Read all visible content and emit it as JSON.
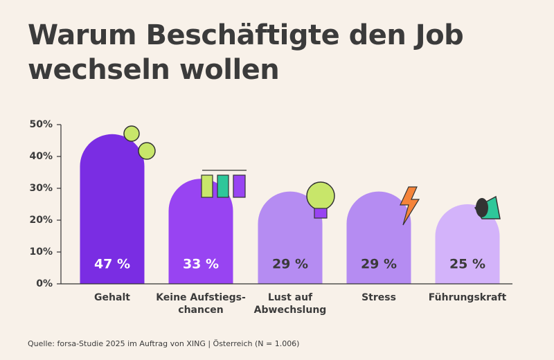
{
  "chart_data": {
    "type": "bar",
    "title": "Warum Beschäftigte den Job\nwechseln wollen",
    "categories": [
      "Gehalt",
      "Keine Aufstiegs-\nchancen",
      "Lust auf\nAbwechslung",
      "Stress",
      "Führungskraft"
    ],
    "values": [
      47,
      33,
      29,
      29,
      25
    ],
    "value_labels": [
      "47 %",
      "33 %",
      "29 %",
      "29 %",
      "25 %"
    ],
    "colors": [
      "#7a2de3",
      "#9844f2",
      "#b58cf2",
      "#b58cf2",
      "#d3b3fa"
    ],
    "value_label_colors": [
      "#ffffff",
      "#ffffff",
      "#3a3a3a",
      "#3a3a3a",
      "#3a3a3a"
    ],
    "ylim": [
      0,
      50
    ],
    "yticks": [
      {
        "value": 0,
        "label": "0%"
      },
      {
        "value": 10,
        "label": "10%"
      },
      {
        "value": 20,
        "label": "20%"
      },
      {
        "value": 30,
        "label": "30%"
      },
      {
        "value": 40,
        "label": "40%"
      },
      {
        "value": 50,
        "label": "50%"
      }
    ],
    "source": "Quelle: forsa-Studie 2025 im Auftrag von XING | Österreich (N = 1.006)"
  }
}
